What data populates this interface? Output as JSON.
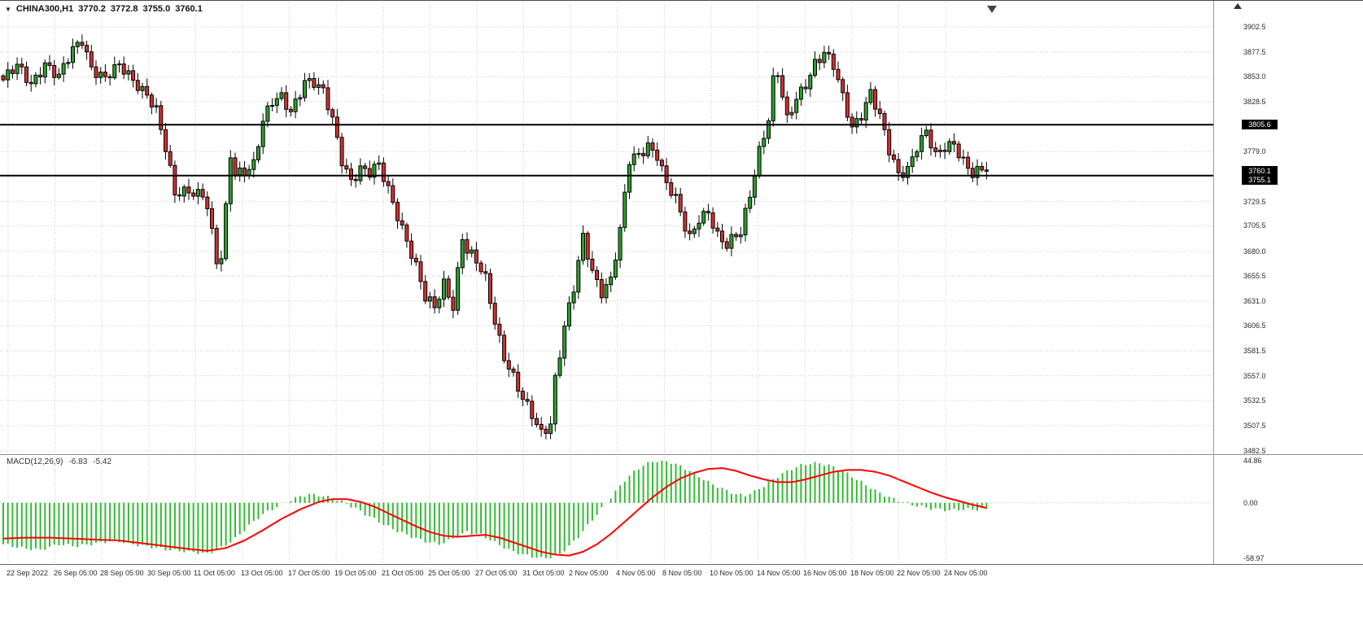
{
  "quote": {
    "dropdown_icon": "▼",
    "symbol": "CHINA300,H1",
    "open": "3770.2",
    "high": "3772.8",
    "low": "3755.0",
    "close": "3760.1"
  },
  "price_axis": {
    "ticks": [
      {
        "value": 3902.5,
        "label": "3902.5"
      },
      {
        "value": 3877.5,
        "label": "3877.5"
      },
      {
        "value": 3853.0,
        "label": "3853.0"
      },
      {
        "value": 3828.5,
        "label": "3828.5"
      },
      {
        "value": 3779.0,
        "label": "3779.0"
      },
      {
        "value": 3729.5,
        "label": "3729.5"
      },
      {
        "value": 3705.5,
        "label": "3705.5"
      },
      {
        "value": 3680.0,
        "label": "3680.0"
      },
      {
        "value": 3655.5,
        "label": "3655.5"
      },
      {
        "value": 3631.0,
        "label": "3631.0"
      },
      {
        "value": 3606.5,
        "label": "3606.5"
      },
      {
        "value": 3581.5,
        "label": "3581.5"
      },
      {
        "value": 3557.0,
        "label": "3557.0"
      },
      {
        "value": 3532.5,
        "label": "3532.5"
      },
      {
        "value": 3507.5,
        "label": "3507.5"
      },
      {
        "value": 3482.5,
        "label": "3482.5"
      }
    ],
    "line_labels": [
      {
        "value": 3805.6,
        "label": "3805.6"
      },
      {
        "value": 3760.1,
        "label": "3760.1"
      },
      {
        "value": 3755.1,
        "label": "3755.1"
      }
    ]
  },
  "time_axis": {
    "labels": [
      "22 Sep 2022",
      "26 Sep 05:00",
      "28 Sep 05:00",
      "30 Sep 05:00",
      "11 Oct 05:00",
      "13 Oct 05:00",
      "17 Oct 05:00",
      "19 Oct 05:00",
      "21 Oct 05:00",
      "25 Oct 05:00",
      "27 Oct 05:00",
      "31 Oct 05:00",
      "2 Nov 05:00",
      "4 Nov 05:00",
      "8 Nov 05:00",
      "10 Nov 05:00",
      "14 Nov 05:00",
      "16 Nov 05:00",
      "18 Nov 05:00",
      "22 Nov 05:00",
      "24 Nov 05:00"
    ]
  },
  "macd_panel": {
    "label": "MACD(12,26,9)",
    "macd_value": "-6.83",
    "signal_value": "-5.42",
    "axis": [
      {
        "value": 44.86,
        "label": "44.86"
      },
      {
        "value": 0,
        "label": "0.00"
      },
      {
        "value": -58.97,
        "label": "-58.97"
      }
    ]
  },
  "chart_data": {
    "type": "candlestick+macd",
    "symbol": "CHINA300",
    "timeframe": "H1",
    "title": "CHINA300,H1 3770.2 3772.8 3755.0 3760.1",
    "candle_count": 213,
    "price_range": [
      3482.5,
      3902.5
    ],
    "current_price": 3760.1,
    "hlines": [
      3805.6,
      3755.1
    ],
    "close_anchors": [
      [
        0,
        3850
      ],
      [
        3,
        3862
      ],
      [
        6,
        3846
      ],
      [
        9,
        3868
      ],
      [
        12,
        3852
      ],
      [
        15,
        3878
      ],
      [
        17,
        3890
      ],
      [
        19,
        3864
      ],
      [
        22,
        3852
      ],
      [
        25,
        3862
      ],
      [
        28,
        3850
      ],
      [
        31,
        3838
      ],
      [
        33,
        3820
      ],
      [
        35,
        3780
      ],
      [
        37,
        3735
      ],
      [
        40,
        3742
      ],
      [
        43,
        3738
      ],
      [
        44,
        3725
      ],
      [
        46,
        3668
      ],
      [
        47,
        3672
      ],
      [
        48,
        3720
      ],
      [
        49,
        3775
      ],
      [
        50,
        3758
      ],
      [
        52,
        3762
      ],
      [
        54,
        3768
      ],
      [
        56,
        3808
      ],
      [
        58,
        3826
      ],
      [
        60,
        3832
      ],
      [
        62,
        3820
      ],
      [
        64,
        3840
      ],
      [
        65,
        3850
      ],
      [
        67,
        3846
      ],
      [
        69,
        3836
      ],
      [
        71,
        3810
      ],
      [
        73,
        3772
      ],
      [
        75,
        3752
      ],
      [
        77,
        3762
      ],
      [
        79,
        3756
      ],
      [
        81,
        3764
      ],
      [
        83,
        3742
      ],
      [
        85,
        3718
      ],
      [
        87,
        3692
      ],
      [
        89,
        3664
      ],
      [
        91,
        3632
      ],
      [
        93,
        3624
      ],
      [
        95,
        3650
      ],
      [
        97,
        3628
      ],
      [
        99,
        3694
      ],
      [
        100,
        3680
      ],
      [
        102,
        3668
      ],
      [
        104,
        3652
      ],
      [
        106,
        3612
      ],
      [
        108,
        3578
      ],
      [
        110,
        3556
      ],
      [
        112,
        3532
      ],
      [
        114,
        3516
      ],
      [
        116,
        3500
      ],
      [
        118,
        3512
      ],
      [
        119,
        3556
      ],
      [
        121,
        3606
      ],
      [
        123,
        3642
      ],
      [
        125,
        3692
      ],
      [
        127,
        3660
      ],
      [
        129,
        3642
      ],
      [
        131,
        3654
      ],
      [
        133,
        3700
      ],
      [
        135,
        3768
      ],
      [
        137,
        3774
      ],
      [
        139,
        3786
      ],
      [
        141,
        3778
      ],
      [
        143,
        3748
      ],
      [
        145,
        3730
      ],
      [
        147,
        3702
      ],
      [
        148,
        3692
      ],
      [
        150,
        3714
      ],
      [
        152,
        3722
      ],
      [
        154,
        3696
      ],
      [
        156,
        3684
      ],
      [
        158,
        3694
      ],
      [
        159,
        3698
      ],
      [
        161,
        3738
      ],
      [
        163,
        3782
      ],
      [
        165,
        3812
      ],
      [
        166,
        3848
      ],
      [
        167,
        3855
      ],
      [
        169,
        3808
      ],
      [
        171,
        3832
      ],
      [
        173,
        3848
      ],
      [
        175,
        3868
      ],
      [
        177,
        3876
      ],
      [
        179,
        3862
      ],
      [
        181,
        3832
      ],
      [
        183,
        3804
      ],
      [
        185,
        3818
      ],
      [
        187,
        3838
      ],
      [
        189,
        3812
      ],
      [
        191,
        3778
      ],
      [
        193,
        3756
      ],
      [
        195,
        3764
      ],
      [
        197,
        3786
      ],
      [
        199,
        3798
      ],
      [
        201,
        3772
      ],
      [
        203,
        3782
      ],
      [
        205,
        3788
      ],
      [
        207,
        3772
      ],
      [
        209,
        3758
      ],
      [
        212,
        3760
      ]
    ],
    "macd": {
      "range": [
        -58.97,
        44.86
      ],
      "hist_anchors": [
        [
          0,
          -44
        ],
        [
          4,
          -48
        ],
        [
          8,
          -50
        ],
        [
          12,
          -44
        ],
        [
          16,
          -46
        ],
        [
          20,
          -43
        ],
        [
          24,
          -40
        ],
        [
          28,
          -44
        ],
        [
          32,
          -47
        ],
        [
          36,
          -50
        ],
        [
          40,
          -52
        ],
        [
          44,
          -54
        ],
        [
          47,
          -48
        ],
        [
          50,
          -38
        ],
        [
          53,
          -24
        ],
        [
          56,
          -12
        ],
        [
          59,
          -4
        ],
        [
          62,
          3
        ],
        [
          64,
          7
        ],
        [
          66,
          9
        ],
        [
          68,
          8
        ],
        [
          70,
          6
        ],
        [
          72,
          3
        ],
        [
          74,
          -1
        ],
        [
          76,
          -6
        ],
        [
          78,
          -12
        ],
        [
          80,
          -17
        ],
        [
          82,
          -23
        ],
        [
          85,
          -30
        ],
        [
          88,
          -36
        ],
        [
          91,
          -41
        ],
        [
          94,
          -44
        ],
        [
          97,
          -38
        ],
        [
          100,
          -31
        ],
        [
          103,
          -34
        ],
        [
          106,
          -42
        ],
        [
          109,
          -50
        ],
        [
          112,
          -55
        ],
        [
          114,
          -57
        ],
        [
          116,
          -59
        ],
        [
          118,
          -58
        ],
        [
          120,
          -54
        ],
        [
          122,
          -46
        ],
        [
          124,
          -36
        ],
        [
          126,
          -24
        ],
        [
          128,
          -12
        ],
        [
          130,
          0
        ],
        [
          132,
          12
        ],
        [
          134,
          24
        ],
        [
          136,
          33
        ],
        [
          138,
          40
        ],
        [
          140,
          44
        ],
        [
          142,
          45
        ],
        [
          144,
          43
        ],
        [
          146,
          39
        ],
        [
          148,
          34
        ],
        [
          150,
          28
        ],
        [
          152,
          22
        ],
        [
          155,
          15
        ],
        [
          158,
          9
        ],
        [
          160,
          8
        ],
        [
          162,
          12
        ],
        [
          164,
          18
        ],
        [
          166,
          25
        ],
        [
          168,
          31
        ],
        [
          170,
          36
        ],
        [
          172,
          40
        ],
        [
          174,
          42
        ],
        [
          176,
          42
        ],
        [
          178,
          40
        ],
        [
          180,
          36
        ],
        [
          182,
          31
        ],
        [
          184,
          25
        ],
        [
          186,
          19
        ],
        [
          188,
          13
        ],
        [
          190,
          8
        ],
        [
          192,
          4
        ],
        [
          194,
          1
        ],
        [
          196,
          -2
        ],
        [
          198,
          -4
        ],
        [
          200,
          -6
        ],
        [
          202,
          -7
        ],
        [
          204,
          -8
        ],
        [
          206,
          -7
        ],
        [
          208,
          -7
        ],
        [
          210,
          -7
        ],
        [
          212,
          -6.83
        ]
      ],
      "signal_anchors": [
        [
          0,
          -38
        ],
        [
          5,
          -37
        ],
        [
          10,
          -37
        ],
        [
          15,
          -38
        ],
        [
          20,
          -39
        ],
        [
          25,
          -40
        ],
        [
          30,
          -43
        ],
        [
          35,
          -46
        ],
        [
          40,
          -49
        ],
        [
          44,
          -51
        ],
        [
          48,
          -48
        ],
        [
          52,
          -40
        ],
        [
          56,
          -29
        ],
        [
          60,
          -17
        ],
        [
          64,
          -7
        ],
        [
          68,
          1
        ],
        [
          71,
          4
        ],
        [
          74,
          4
        ],
        [
          77,
          1
        ],
        [
          80,
          -4
        ],
        [
          83,
          -11
        ],
        [
          86,
          -18
        ],
        [
          89,
          -25
        ],
        [
          92,
          -31
        ],
        [
          95,
          -35
        ],
        [
          98,
          -36
        ],
        [
          101,
          -35
        ],
        [
          104,
          -34
        ],
        [
          107,
          -37
        ],
        [
          110,
          -42
        ],
        [
          113,
          -47
        ],
        [
          116,
          -52
        ],
        [
          119,
          -55
        ],
        [
          122,
          -56
        ],
        [
          125,
          -52
        ],
        [
          128,
          -44
        ],
        [
          131,
          -33
        ],
        [
          134,
          -20
        ],
        [
          137,
          -7
        ],
        [
          140,
          6
        ],
        [
          143,
          17
        ],
        [
          146,
          26
        ],
        [
          149,
          32
        ],
        [
          152,
          36
        ],
        [
          155,
          37
        ],
        [
          158,
          34
        ],
        [
          161,
          29
        ],
        [
          164,
          25
        ],
        [
          167,
          22
        ],
        [
          170,
          22
        ],
        [
          173,
          25
        ],
        [
          176,
          29
        ],
        [
          179,
          33
        ],
        [
          182,
          35
        ],
        [
          185,
          35
        ],
        [
          188,
          33
        ],
        [
          191,
          29
        ],
        [
          194,
          23
        ],
        [
          197,
          17
        ],
        [
          200,
          11
        ],
        [
          203,
          6
        ],
        [
          206,
          2
        ],
        [
          209,
          -2
        ],
        [
          212,
          -5.42
        ]
      ]
    }
  },
  "colors": {
    "up": "#2aa12a",
    "down": "#d23030",
    "hist": "#33bb33",
    "signal": "#ff0000",
    "hline": "#000000",
    "grid": "#cccccc",
    "axis_text": "#2a2a2a",
    "label_bg": "#000000",
    "label_fg": "#ffffff"
  }
}
